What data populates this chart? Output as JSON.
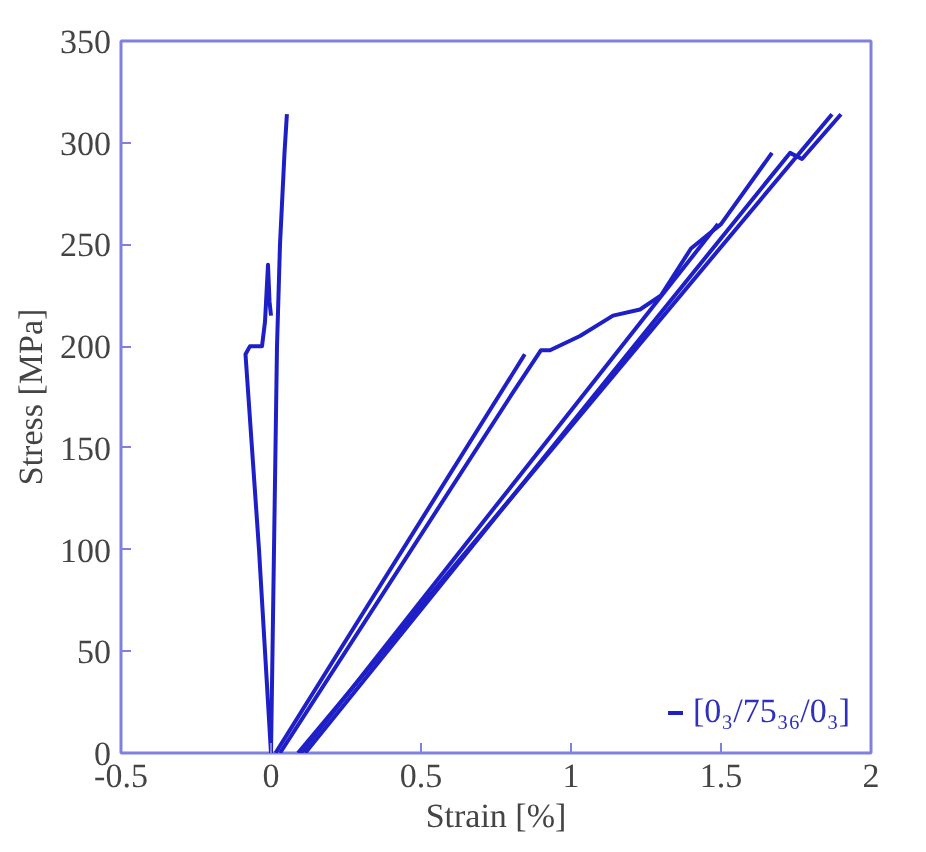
{
  "chart_data": {
    "type": "line",
    "xlabel": "Strain [%]",
    "ylabel": "Stress [MPa]",
    "xlim": [
      -0.5,
      2
    ],
    "ylim": [
      0,
      350
    ],
    "xticks": [
      -0.5,
      0,
      0.5,
      1,
      1.5,
      2
    ],
    "yticks": [
      0,
      50,
      100,
      150,
      200,
      250,
      300,
      350
    ],
    "grid": false,
    "legend": "bottom right",
    "marker": "none",
    "line_style": "solid",
    "series": [
      {
        "name": "[0₃/75₃₆/0₃]",
        "color": "#1f1fc8",
        "x": [
          0,
          -0.04,
          -0.085,
          -0.07,
          -0.03,
          -0.02,
          -0.01,
          -0.005,
          0
        ],
        "values": [
          0,
          100,
          196,
          200,
          200,
          212,
          240,
          222,
          215
        ]
      },
      {
        "color": "#1f1fc8",
        "x": [
          0,
          0.01,
          0.02,
          0.03,
          0.045,
          0.053
        ],
        "values": [
          0,
          100,
          200,
          250,
          295,
          314
        ]
      },
      {
        "color": "#1f1fc8",
        "x": [
          0.015,
          0.846
        ],
        "values": [
          0,
          196
        ]
      },
      {
        "color": "#1f1fc8",
        "x": [
          0.03,
          0.81,
          0.9,
          0.93,
          1.03,
          1.14,
          1.23,
          1.3,
          1.4,
          1.5,
          1.67
        ],
        "values": [
          0,
          178,
          198,
          198,
          205,
          215,
          218,
          225,
          248,
          260,
          295
        ]
      },
      {
        "color": "#1f1fc8",
        "x": [
          0.09,
          1.87
        ],
        "values": [
          0,
          314
        ]
      },
      {
        "color": "#1f1fc8",
        "x": [
          0.114,
          1.73,
          1.77,
          1.9
        ],
        "values": [
          0,
          295,
          292,
          314
        ]
      },
      {
        "color": "#1f1fc8",
        "x": [
          0.1,
          1.49
        ],
        "values": [
          0,
          260
        ]
      }
    ]
  }
}
